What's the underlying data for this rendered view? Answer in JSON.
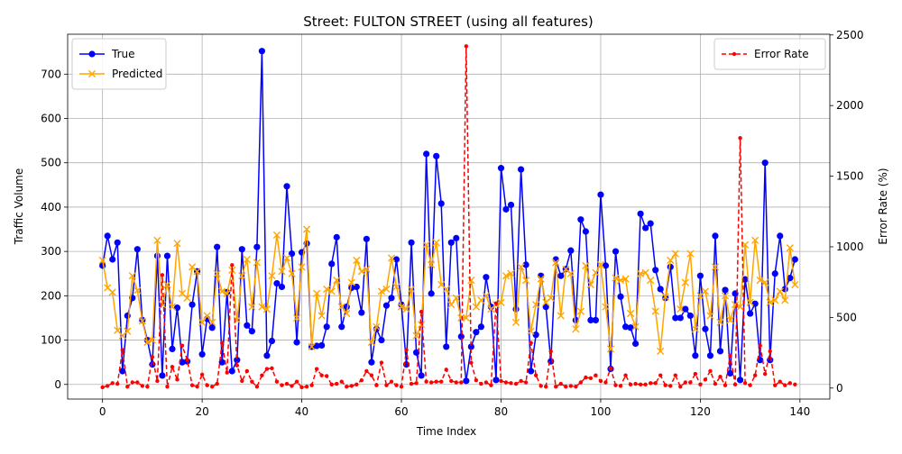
{
  "chart_data": {
    "type": "line",
    "title": "Street: FULTON STREET (using all features)",
    "xlabel": "Time Index",
    "ylabel": "Traffic Volume",
    "y2label": "Error Rate (%)",
    "xlim": [
      -7,
      146
    ],
    "ylim": [
      -33,
      790
    ],
    "y2lim": [
      -78,
      2505
    ],
    "x_ticks": [
      0,
      20,
      40,
      60,
      80,
      100,
      120,
      140
    ],
    "y_ticks": [
      0,
      100,
      200,
      300,
      400,
      500,
      600,
      700
    ],
    "y2_ticks": [
      0,
      500,
      1000,
      1500,
      2000,
      2500
    ],
    "grid": true,
    "legend_left_placement": "top-left",
    "legend_right_placement": "top-right",
    "series": [
      {
        "name": "True",
        "axis": "left",
        "color": "#0000ff",
        "marker": "circle",
        "values": [
          268,
          335,
          282,
          320,
          30,
          155,
          195,
          305,
          145,
          100,
          45,
          290,
          20,
          290,
          80,
          173,
          50,
          52,
          180,
          255,
          68,
          148,
          128,
          310,
          50,
          208,
          30,
          55,
          305,
          133,
          120,
          310,
          752,
          65,
          98,
          228,
          220,
          447,
          295,
          95,
          298,
          318,
          85,
          87,
          88,
          130,
          272,
          332,
          130,
          175,
          218,
          220,
          162,
          328,
          50,
          125,
          100,
          178,
          195,
          282,
          180,
          45,
          320,
          72,
          20,
          520,
          205,
          515,
          408,
          85,
          320,
          330,
          108,
          8,
          85,
          118,
          130,
          242,
          175,
          10,
          488,
          395,
          405,
          170,
          485,
          270,
          30,
          112,
          245,
          175,
          52,
          282,
          245,
          260,
          302,
          145,
          372,
          345,
          145,
          145,
          428,
          268,
          35,
          300,
          198,
          130,
          128,
          92,
          385,
          353,
          363,
          258,
          215,
          195,
          265,
          150,
          150,
          170,
          155,
          65,
          245,
          125,
          65,
          335,
          75,
          213,
          25,
          205,
          10,
          237,
          160,
          182,
          55,
          500,
          55,
          250,
          335,
          215,
          240,
          282
        ]
      },
      {
        "name": "Predicted",
        "axis": "left",
        "color": "#ffa500",
        "marker": "x",
        "values": [
          280,
          218,
          208,
          122,
          110,
          120,
          245,
          212,
          143,
          95,
          100,
          325,
          180,
          225,
          175,
          318,
          205,
          195,
          265,
          255,
          140,
          155,
          140,
          250,
          210,
          205,
          258,
          145,
          245,
          282,
          175,
          275,
          175,
          170,
          245,
          337,
          255,
          285,
          250,
          150,
          265,
          350,
          85,
          205,
          155,
          215,
          210,
          235,
          175,
          160,
          230,
          280,
          255,
          260,
          95,
          130,
          210,
          215,
          285,
          220,
          175,
          170,
          215,
          110,
          135,
          315,
          270,
          320,
          225,
          215,
          180,
          195,
          150,
          150,
          235,
          175,
          190,
          200,
          170,
          180,
          185,
          245,
          250,
          140,
          265,
          235,
          120,
          180,
          238,
          185,
          195,
          275,
          155,
          260,
          250,
          125,
          165,
          268,
          225,
          252,
          270,
          175,
          80,
          240,
          235,
          238,
          160,
          130,
          250,
          252,
          235,
          165,
          75,
          198,
          280,
          295,
          170,
          230,
          295,
          125,
          200,
          210,
          155,
          265,
          140,
          200,
          145,
          180,
          175,
          315,
          185,
          325,
          235,
          230,
          185,
          190,
          210,
          190,
          308,
          225
        ]
      },
      {
        "name": "Error Rate",
        "axis": "right",
        "color": "#ff0000",
        "marker": "dot",
        "values": [
          5,
          15,
          35,
          30,
          270,
          10,
          40,
          40,
          15,
          10,
          220,
          50,
          800,
          10,
          150,
          60,
          300,
          200,
          20,
          10,
          95,
          20,
          10,
          30,
          320,
          110,
          870,
          160,
          50,
          120,
          45,
          10,
          90,
          135,
          140,
          45,
          20,
          30,
          15,
          45,
          5,
          10,
          20,
          135,
          90,
          85,
          25,
          30,
          45,
          10,
          15,
          25,
          55,
          120,
          90,
          20,
          180,
          20,
          45,
          20,
          10,
          270,
          30,
          35,
          540,
          45,
          40,
          45,
          45,
          130,
          50,
          40,
          40,
          2420,
          180,
          55,
          30,
          40,
          20,
          600,
          50,
          40,
          35,
          30,
          50,
          40,
          320,
          90,
          15,
          10,
          260,
          10,
          30,
          10,
          15,
          10,
          40,
          75,
          70,
          90,
          50,
          40,
          140,
          20,
          15,
          90,
          25,
          30,
          25,
          25,
          35,
          35,
          90,
          20,
          15,
          90,
          10,
          40,
          40,
          100,
          25,
          60,
          120,
          30,
          80,
          20,
          230,
          25,
          1770,
          35,
          20,
          90,
          300,
          100,
          260,
          20,
          45,
          20,
          35,
          25
        ]
      }
    ]
  }
}
